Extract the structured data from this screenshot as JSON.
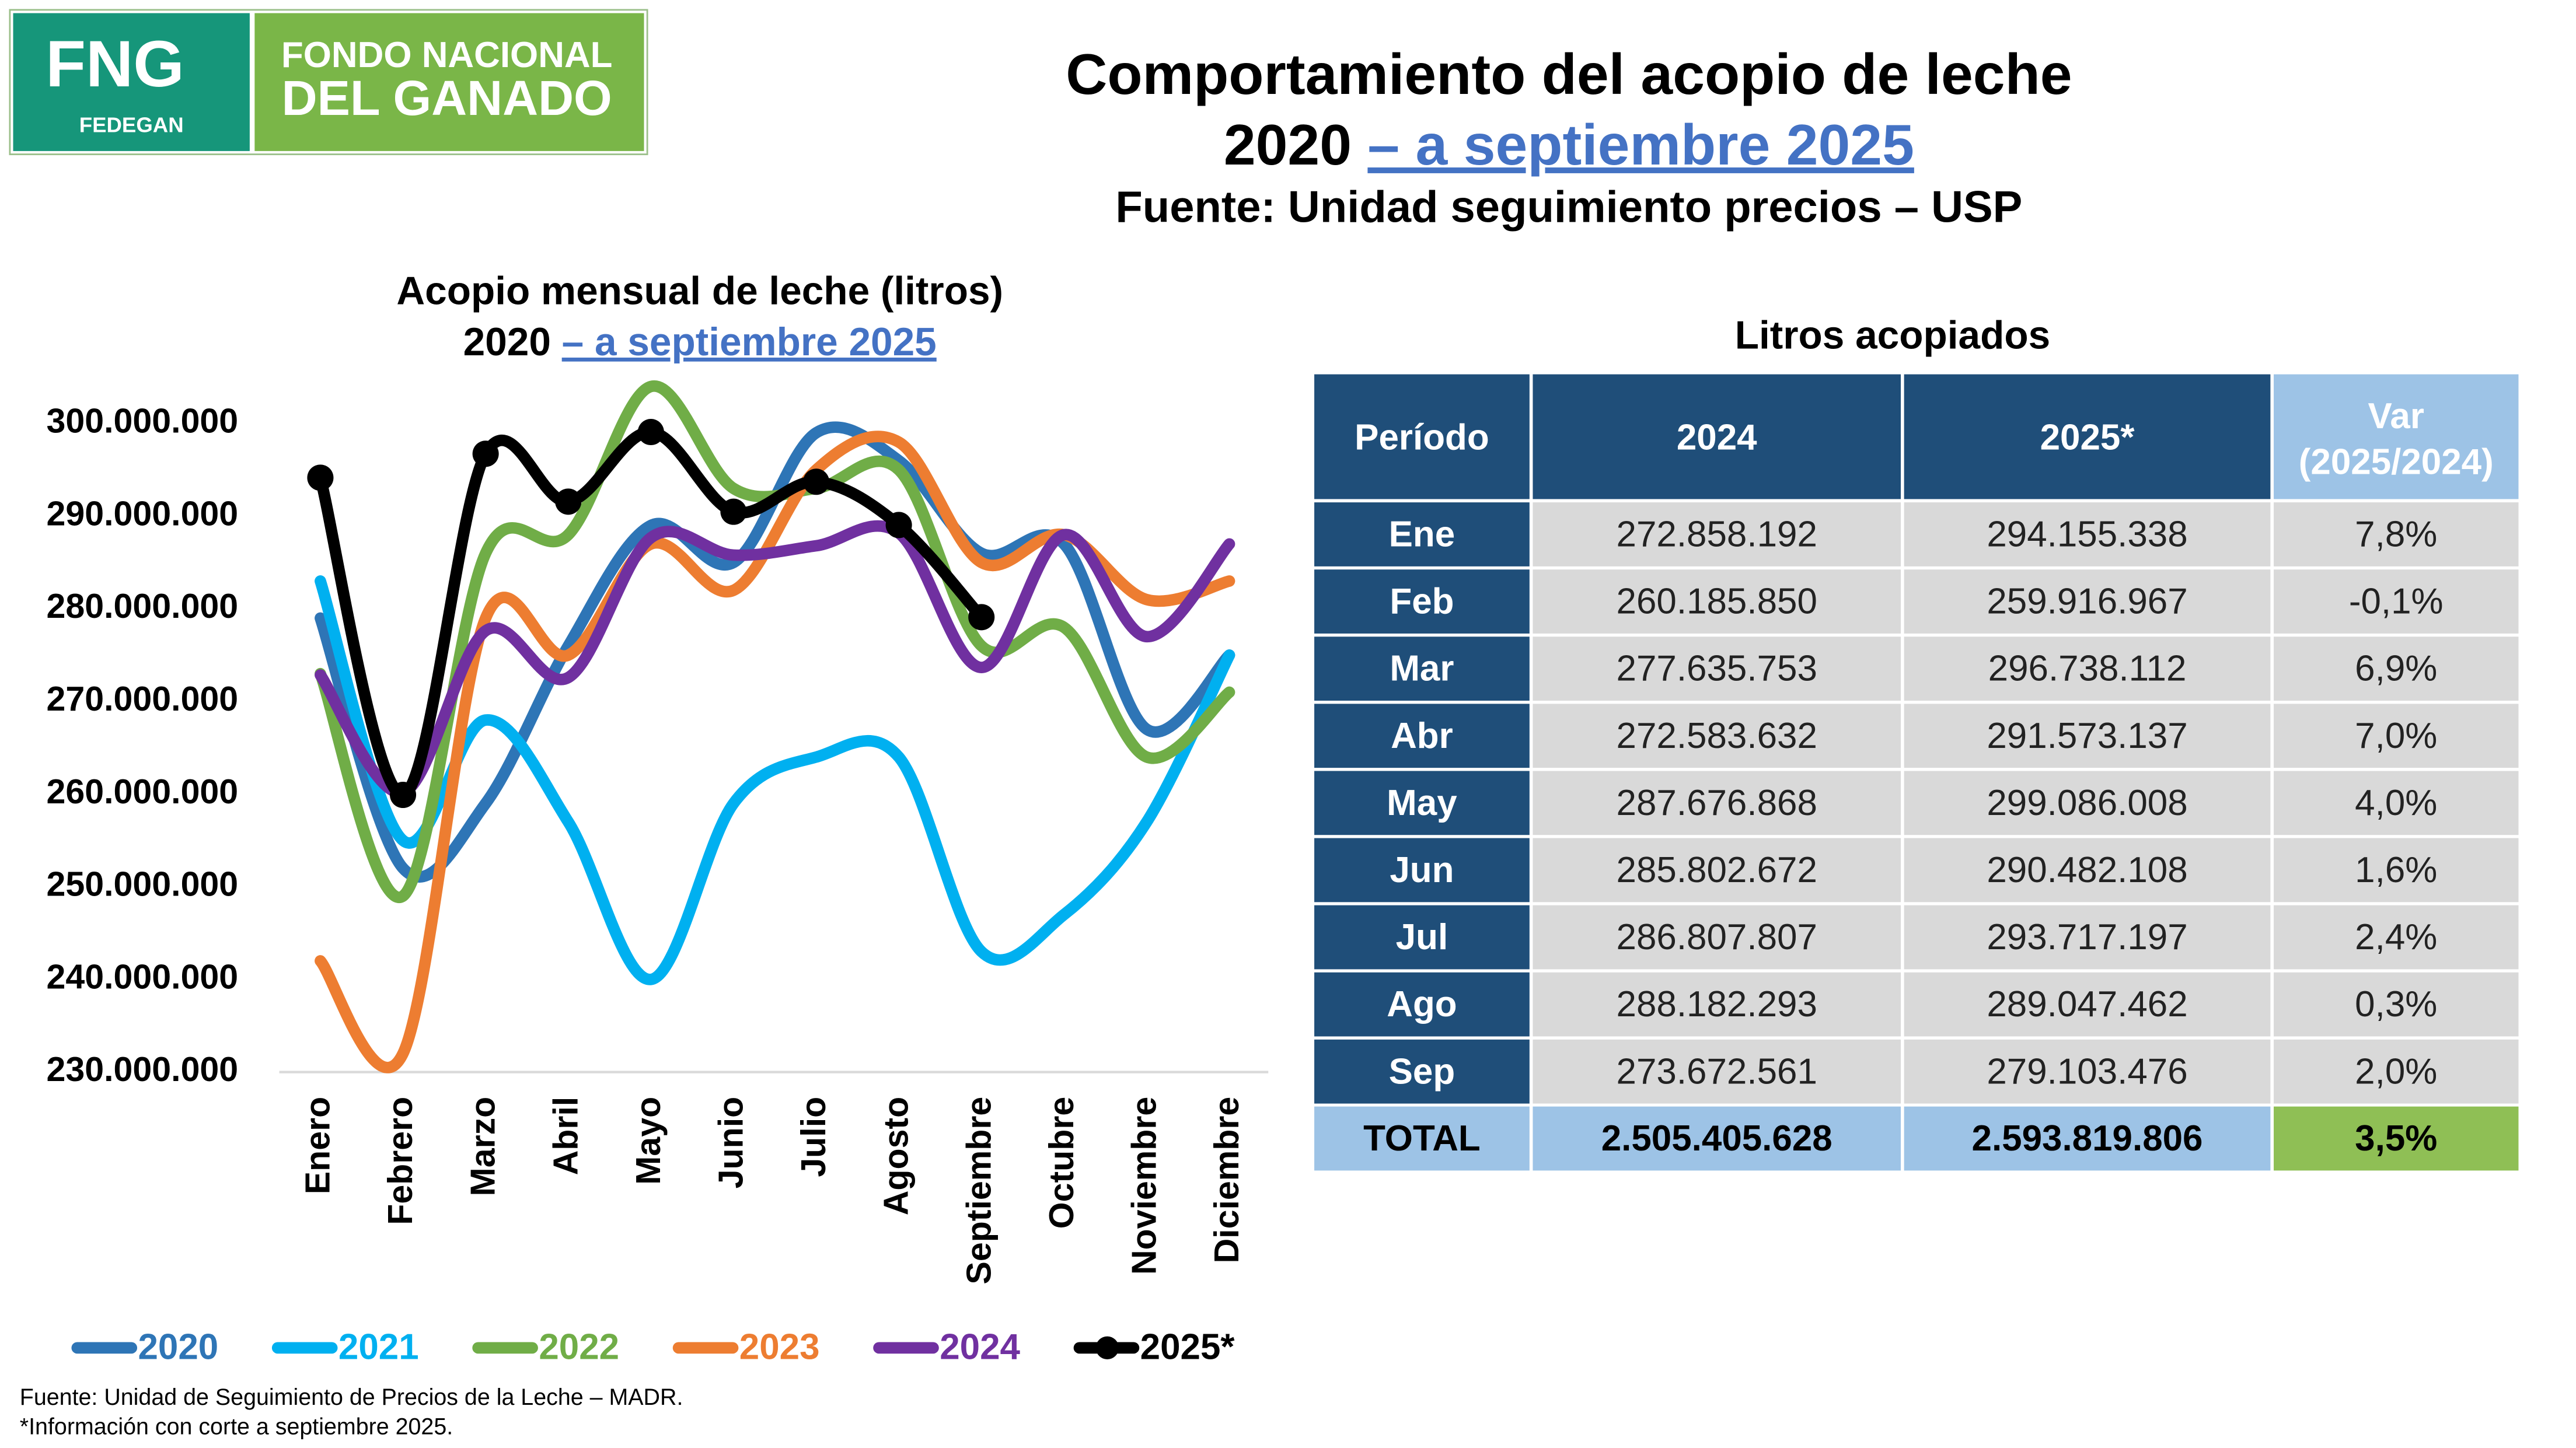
{
  "header": {
    "logo": {
      "mark": "FNG",
      "sub": "FEDEGAN",
      "line1": "FONDO NACIONAL",
      "line2": "DEL GANADO"
    },
    "title": "Comportamiento del acopio de leche",
    "title_year": "2020",
    "title_range": "– a septiembre 2025",
    "source": "Fuente: Unidad seguimiento precios – USP"
  },
  "chart_data": {
    "type": "line",
    "title": "Acopio mensual de leche (litros)",
    "subtitle_year": "2020",
    "subtitle_range": "– a septiembre 2025",
    "categories": [
      "Enero",
      "Febrero",
      "Marzo",
      "Abril",
      "Mayo",
      "Junio",
      "Julio",
      "Agosto",
      "Septiembre",
      "Octubre",
      "Noviembre",
      "Diciembre"
    ],
    "ylim": [
      230000000,
      305000000
    ],
    "yticks": [
      {
        "value": 230000000,
        "label": "230.000.000"
      },
      {
        "value": 240000000,
        "label": "240.000.000"
      },
      {
        "value": 250000000,
        "label": "250.000.000"
      },
      {
        "value": 260000000,
        "label": "260.000.000"
      },
      {
        "value": 270000000,
        "label": "270.000.000"
      },
      {
        "value": 280000000,
        "label": "280.000.000"
      },
      {
        "value": 290000000,
        "label": "290.000.000"
      },
      {
        "value": 300000000,
        "label": "300.000.000"
      }
    ],
    "grid": false,
    "legend": "bottom",
    "series": [
      {
        "name": "2020",
        "color": "#2e75b6",
        "values": [
          279000000,
          252000000,
          259000000,
          276000000,
          289000000,
          285000000,
          299000000,
          296000000,
          286000000,
          287000000,
          267000000,
          275000000
        ]
      },
      {
        "name": "2021",
        "color": "#00b0f0",
        "values": [
          283000000,
          255000000,
          268000000,
          257000000,
          240000000,
          259000000,
          264000000,
          264000000,
          243000000,
          247000000,
          257000000,
          275000000
        ]
      },
      {
        "name": "2022",
        "color": "#70ad47",
        "values": [
          273000000,
          249000000,
          286000000,
          288000000,
          304000000,
          293000000,
          293000000,
          295000000,
          276000000,
          278000000,
          264000000,
          271000000
        ]
      },
      {
        "name": "2023",
        "color": "#ed7d31",
        "values": [
          242000000,
          232000000,
          279000000,
          275000000,
          287000000,
          282000000,
          295000000,
          298000000,
          285000000,
          288000000,
          281000000,
          283000000
        ]
      },
      {
        "name": "2024",
        "color": "#7030a0",
        "values": [
          272858192,
          260185850,
          277635753,
          272583632,
          287676868,
          285802672,
          286807807,
          288182293,
          273672561,
          288000000,
          277000000,
          287000000
        ]
      },
      {
        "name": "2025*",
        "color": "#000000",
        "markers": true,
        "values": [
          294155338,
          259916967,
          296738112,
          291573137,
          299086008,
          290482108,
          293717197,
          289047462,
          279103476,
          null,
          null,
          null
        ]
      }
    ]
  },
  "table": {
    "title": "Litros acopiados",
    "header": [
      "Período",
      "2024",
      "2025*",
      [
        "Var",
        "(2025/2024)"
      ]
    ],
    "rows": [
      [
        "Ene",
        "272.858.192",
        "294.155.338",
        "7,8%"
      ],
      [
        "Feb",
        "260.185.850",
        "259.916.967",
        "-0,1%"
      ],
      [
        "Mar",
        "277.635.753",
        "296.738.112",
        "6,9%"
      ],
      [
        "Abr",
        "272.583.632",
        "291.573.137",
        "7,0%"
      ],
      [
        "May",
        "287.676.868",
        "299.086.008",
        "4,0%"
      ],
      [
        "Jun",
        "285.802.672",
        "290.482.108",
        "1,6%"
      ],
      [
        "Jul",
        "286.807.807",
        "293.717.197",
        "2,4%"
      ],
      [
        "Ago",
        "288.182.293",
        "289.047.462",
        "0,3%"
      ],
      [
        "Sep",
        "273.672.561",
        "279.103.476",
        "2,0%"
      ]
    ],
    "total": [
      "TOTAL",
      "2.505.405.628",
      "2.593.819.806",
      "3,5%"
    ]
  },
  "footnotes": [
    "Fuente: Unidad de Seguimiento de Precios de la Leche – MADR.",
    "*Información con corte a septiembre 2025."
  ]
}
